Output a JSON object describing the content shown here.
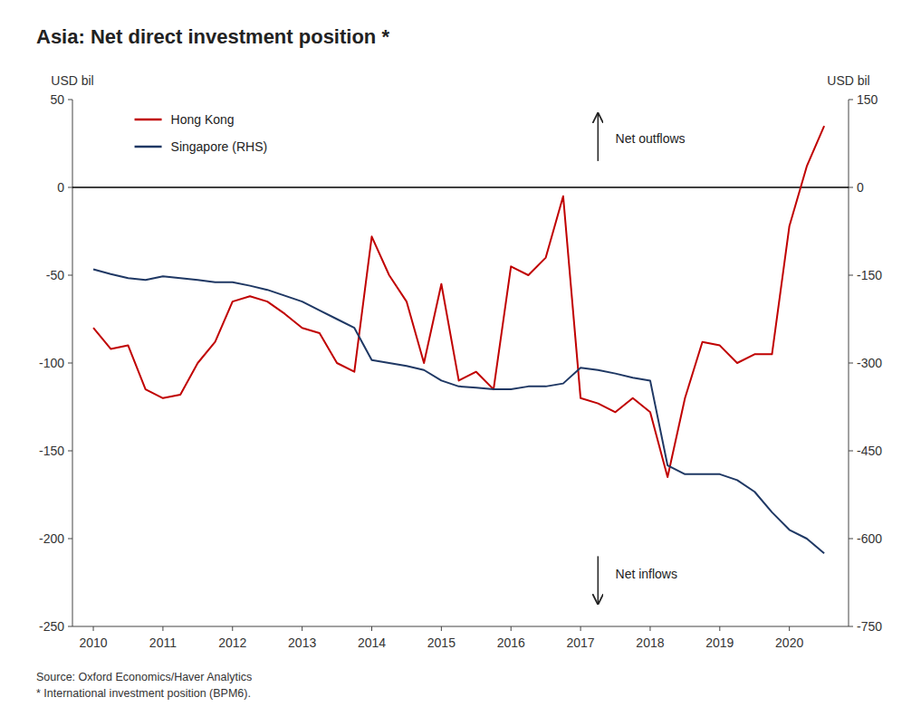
{
  "chart_data": {
    "type": "line",
    "title": "Asia: Net direct investment position *",
    "ylabel": "USD bil",
    "y2label": "USD bil",
    "source": "Source: Oxford Economics/Haver Analytics\n* International investment position (BPM6).",
    "x": [
      2010.0,
      2010.25,
      2010.5,
      2010.75,
      2011.0,
      2011.25,
      2011.5,
      2011.75,
      2012.0,
      2012.25,
      2012.5,
      2012.75,
      2013.0,
      2013.25,
      2013.5,
      2013.75,
      2014.0,
      2014.25,
      2014.5,
      2014.75,
      2015.0,
      2015.25,
      2015.5,
      2015.75,
      2016.0,
      2016.25,
      2016.5,
      2016.75,
      2017.0,
      2017.25,
      2017.5,
      2017.75,
      2018.0,
      2018.25,
      2018.5,
      2018.75,
      2019.0,
      2019.25,
      2019.5,
      2019.75,
      2020.0,
      2020.25,
      2020.5
    ],
    "series": [
      {
        "name": "Hong Kong",
        "color": "#c00000",
        "values": [
          -80,
          -92,
          -90,
          -115,
          -120,
          -118,
          -100,
          -88,
          -65,
          -62,
          -65,
          -72,
          -80,
          -83,
          -100,
          -105,
          -28,
          -50,
          -65,
          -100,
          -55,
          -110,
          -105,
          -115,
          -45,
          -50,
          -40,
          -5,
          -120,
          -123,
          -128,
          -120,
          -128,
          -165,
          -120,
          -88,
          -90,
          -100,
          -95,
          -95,
          -22,
          12,
          35
        ]
      },
      {
        "name": "Singapore (RHS)",
        "color": "#1f3864",
        "axis": "y2",
        "values": [
          -140,
          -148,
          -155,
          -158,
          -152,
          -155,
          -158,
          -162,
          -162,
          -168,
          -175,
          -185,
          -195,
          -210,
          -225,
          -240,
          -295,
          -300,
          -305,
          -312,
          -330,
          -340,
          -342,
          -345,
          -345,
          -340,
          -340,
          -335,
          -308,
          -312,
          -318,
          -325,
          -330,
          -475,
          -490,
          -490,
          -490,
          -500,
          -520,
          -555,
          -585,
          -600,
          -625
        ]
      }
    ],
    "xlim": [
      2009.7,
      2020.85
    ],
    "xticks": [
      2010,
      2011,
      2012,
      2013,
      2014,
      2015,
      2016,
      2017,
      2018,
      2019,
      2020
    ],
    "ylim": [
      -250,
      50
    ],
    "yticks": [
      -250,
      -200,
      -150,
      -100,
      -50,
      0,
      50
    ],
    "y2lim": [
      -750,
      150
    ],
    "y2ticks": [
      -750,
      -600,
      -450,
      -300,
      -150,
      0,
      150
    ],
    "hline": 0,
    "annotations": [
      {
        "text": "Net outflows",
        "x": 2017.5,
        "y": 28,
        "arrow_x": 2017.25,
        "arrow_from": 15,
        "arrow_to": 42
      },
      {
        "text": "Net inflows",
        "x": 2017.5,
        "y": -220,
        "arrow_x": 2017.25,
        "arrow_from": -210,
        "arrow_to": -237
      }
    ],
    "legend": "upper left",
    "grid": false
  }
}
